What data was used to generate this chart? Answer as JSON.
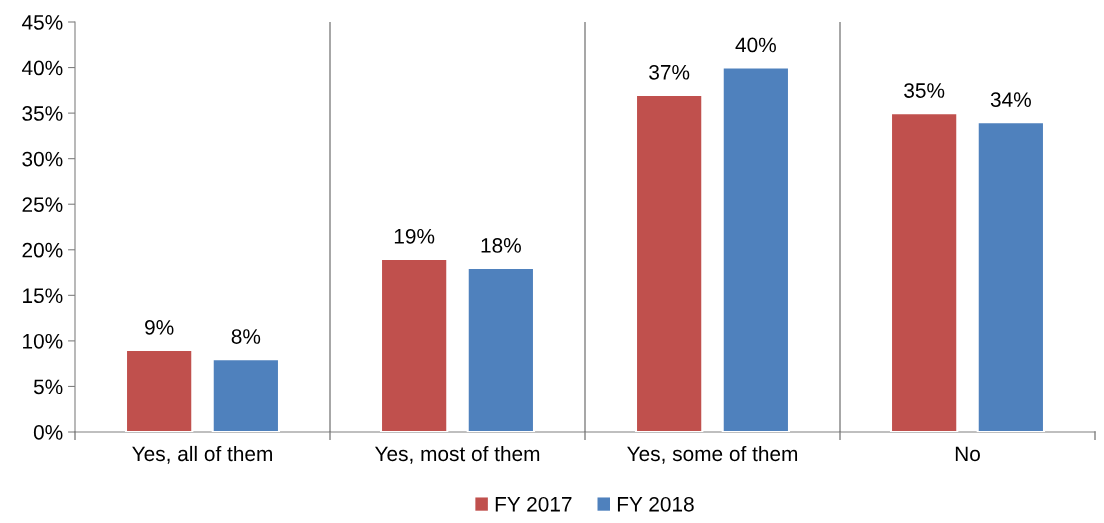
{
  "chart_data": {
    "type": "bar",
    "categories": [
      "Yes, all of them",
      "Yes, most of them",
      "Yes, some of them",
      "No"
    ],
    "series": [
      {
        "name": "FY 2017",
        "color": "#c0504d",
        "values": [
          9,
          19,
          37,
          35
        ],
        "value_labels": [
          "9%",
          "19%",
          "37%",
          "35%"
        ]
      },
      {
        "name": "FY 2018",
        "color": "#4f81bd",
        "values": [
          8,
          18,
          40,
          34
        ],
        "value_labels": [
          "8%",
          "18%",
          "40%",
          "34%"
        ]
      }
    ],
    "ylim": [
      0,
      45
    ],
    "yticks": [
      {
        "value": 0,
        "label": "0%"
      },
      {
        "value": 5,
        "label": "5%"
      },
      {
        "value": 10,
        "label": "10%"
      },
      {
        "value": 15,
        "label": "15%"
      },
      {
        "value": 20,
        "label": "20%"
      },
      {
        "value": 25,
        "label": "25%"
      },
      {
        "value": 30,
        "label": "30%"
      },
      {
        "value": 35,
        "label": "35%"
      },
      {
        "value": 40,
        "label": "40%"
      },
      {
        "value": 45,
        "label": "45%"
      }
    ],
    "grid": "x",
    "legend": "bottom"
  }
}
